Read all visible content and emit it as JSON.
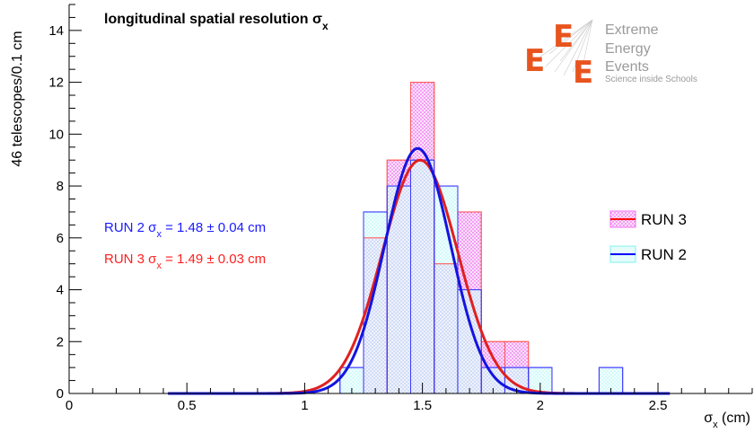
{
  "chart_data": {
    "type": "bar",
    "title": "longitudinal spatial resolution σ",
    "title_subscript": "x",
    "ylabel": "46 telescopes/0.1 cm",
    "xlabel": "σ",
    "xlabel_subscript": "x",
    "xlabel_unit": " (cm)",
    "xlim": [
      0,
      2.9
    ],
    "ylim": [
      0,
      15
    ],
    "x_ticks": [
      "0",
      "0.5",
      "1",
      "1.5",
      "2",
      "2.5"
    ],
    "y_ticks": [
      "0",
      "2",
      "4",
      "6",
      "8",
      "10",
      "12",
      "14"
    ],
    "bin_width": 0.1,
    "series": [
      {
        "name": "RUN 3",
        "color": "#ff0000",
        "fill_color": "#ff00ff",
        "bins": [
          {
            "x0": 1.15,
            "value": 0
          },
          {
            "x0": 1.25,
            "value": 6
          },
          {
            "x0": 1.35,
            "value": 9
          },
          {
            "x0": 1.45,
            "value": 12
          },
          {
            "x0": 1.55,
            "value": 5
          },
          {
            "x0": 1.65,
            "value": 7
          },
          {
            "x0": 1.75,
            "value": 2
          },
          {
            "x0": 1.85,
            "value": 2
          },
          {
            "x0": 1.95,
            "value": 0
          }
        ],
        "fit": {
          "mean": 1.49,
          "sigma": 0.16,
          "peak": 9.0,
          "xmin": 0.42,
          "xmax": 2.55
        }
      },
      {
        "name": "RUN 2",
        "color": "#0000ff",
        "fill_color": "#00ffff",
        "bins": [
          {
            "x0": 1.15,
            "value": 1
          },
          {
            "x0": 1.25,
            "value": 7
          },
          {
            "x0": 1.35,
            "value": 8
          },
          {
            "x0": 1.45,
            "value": 9
          },
          {
            "x0": 1.55,
            "value": 8
          },
          {
            "x0": 1.65,
            "value": 4
          },
          {
            "x0": 1.75,
            "value": 1
          },
          {
            "x0": 1.85,
            "value": 1
          },
          {
            "x0": 1.95,
            "value": 1
          },
          {
            "x0": 2.05,
            "value": 0
          },
          {
            "x0": 2.15,
            "value": 0
          },
          {
            "x0": 2.25,
            "value": 1
          }
        ],
        "fit": {
          "mean": 1.48,
          "sigma": 0.14,
          "peak": 9.45,
          "xmin": 0.42,
          "xmax": 2.55
        }
      }
    ],
    "annotations": [
      {
        "prefix": "RUN 2 σ",
        "sub": "x",
        "suffix": " = 1.48 ± 0.04 cm",
        "color": "#1a1aff"
      },
      {
        "prefix": "RUN 3 σ",
        "sub": "x",
        "suffix": " = 1.49 ± 0.03 cm",
        "color": "#ff2020"
      }
    ],
    "legend": {
      "placement": "right",
      "entries": [
        {
          "label": "RUN 3",
          "line": "#ff0000",
          "fill": "#ff00ff"
        },
        {
          "label": "RUN 2",
          "line": "#0000ff",
          "fill": "#00ffff"
        }
      ]
    },
    "logo": {
      "lines": [
        "Extreme",
        "Energy",
        "Events"
      ],
      "tagline": "Science inside Schools",
      "mark": "E",
      "mark_color": "#e8541e"
    }
  }
}
